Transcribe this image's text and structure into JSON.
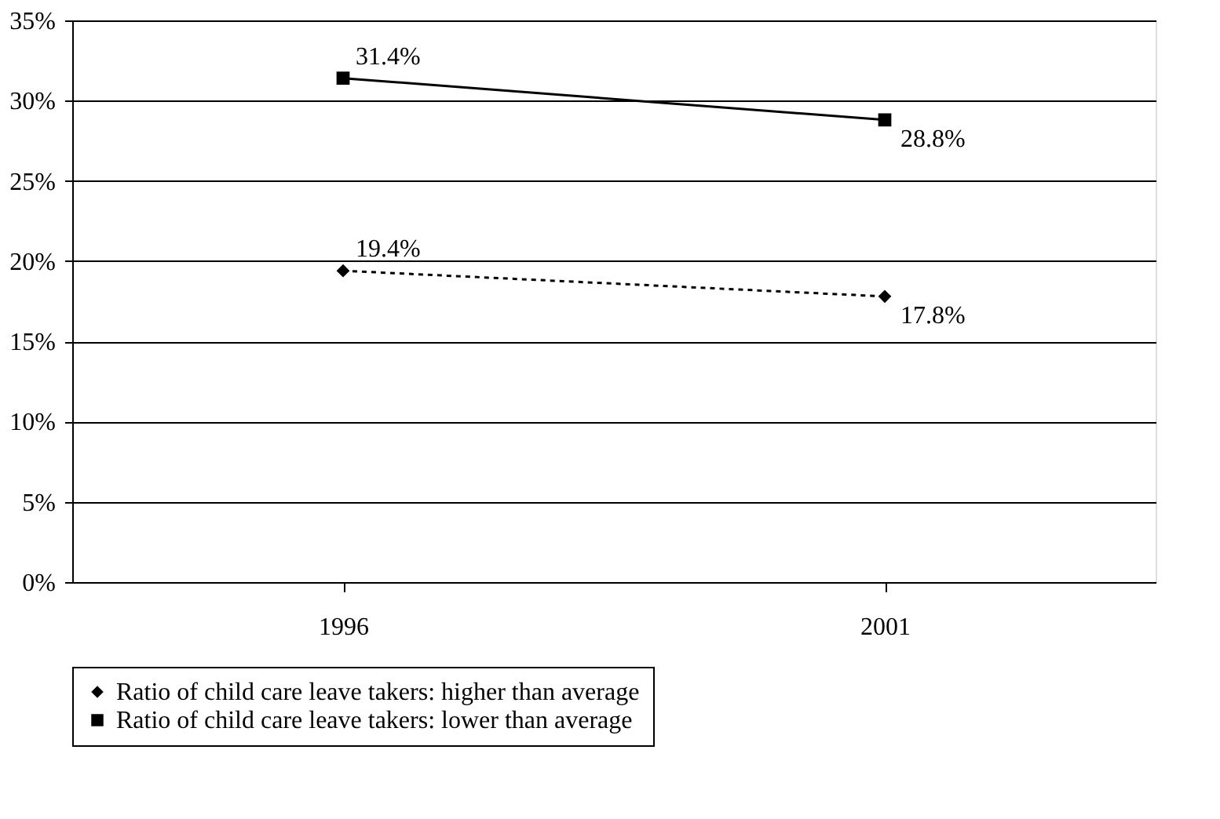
{
  "chart_data": {
    "type": "line",
    "categories": [
      "1996",
      "2001"
    ],
    "series": [
      {
        "name": "Ratio of child care leave takers: higher than average",
        "color": "#000000",
        "values": [
          19.4,
          17.8
        ],
        "marker": "diamond",
        "line_style": "dotted",
        "value_labels": [
          "19.4%",
          "17.8%"
        ]
      },
      {
        "name": "Ratio of child care leave takers: lower than average",
        "color": "#000000",
        "values": [
          31.4,
          28.8
        ],
        "marker": "square",
        "line_style": "solid",
        "value_labels": [
          "31.4%",
          "28.8%"
        ]
      }
    ],
    "ylim": [
      0,
      35
    ],
    "yticks": [
      {
        "value": 0,
        "label": "0%"
      },
      {
        "value": 5,
        "label": "5%"
      },
      {
        "value": 10,
        "label": "10%"
      },
      {
        "value": 15,
        "label": "15%"
      },
      {
        "value": 20,
        "label": "20%"
      },
      {
        "value": 25,
        "label": "25%"
      },
      {
        "value": 30,
        "label": "30%"
      },
      {
        "value": 35,
        "label": "35%"
      }
    ],
    "grid": "y",
    "legend": "bottom"
  }
}
